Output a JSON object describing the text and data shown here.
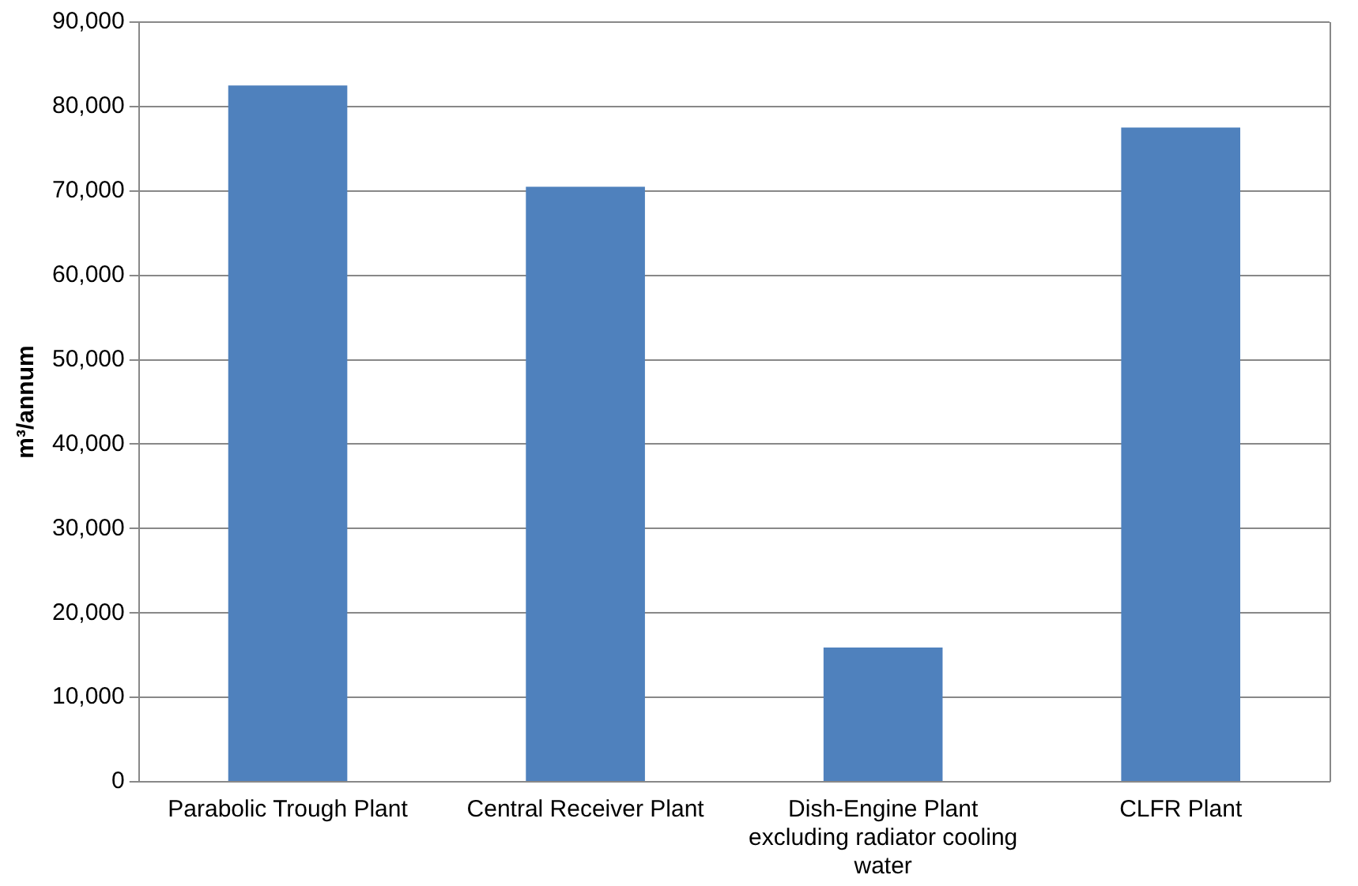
{
  "chart_data": {
    "type": "bar",
    "ylabel": "m³/annum",
    "categories": [
      "Parabolic Trough Plant",
      "Central Receiver Plant",
      "Dish-Engine Plant excluding radiator cooling water",
      "CLFR Plant"
    ],
    "values": [
      82500,
      70500,
      15900,
      77500
    ],
    "color": "#4f81bd",
    "ylim": [
      0,
      90000
    ],
    "yticks": [
      {
        "value": 0,
        "label": "0"
      },
      {
        "value": 10000,
        "label": "10,000"
      },
      {
        "value": 20000,
        "label": "20,000"
      },
      {
        "value": 30000,
        "label": "30,000"
      },
      {
        "value": 40000,
        "label": "40,000"
      },
      {
        "value": 50000,
        "label": "50,000"
      },
      {
        "value": 60000,
        "label": "60,000"
      },
      {
        "value": 70000,
        "label": "70,000"
      },
      {
        "value": 80000,
        "label": "80,000"
      },
      {
        "value": 90000,
        "label": "90,000"
      }
    ],
    "grid": "y",
    "legend": false
  }
}
